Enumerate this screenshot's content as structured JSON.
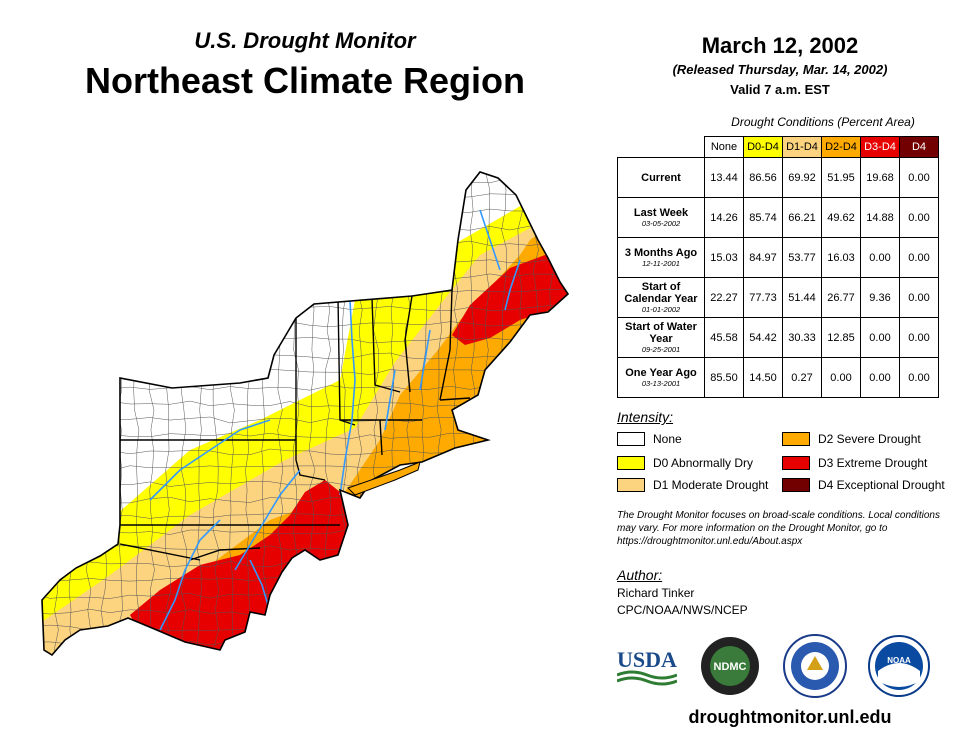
{
  "header": {
    "subtitle": "U.S. Drought Monitor",
    "title": "Northeast Climate Region",
    "date": "March 12, 2002",
    "released": "(Released Thursday, Mar. 14, 2002)",
    "valid": "Valid 7 a.m. EST"
  },
  "table": {
    "caption": "Drought Conditions (Percent Area)",
    "columns": [
      "None",
      "D0-D4",
      "D1-D4",
      "D2-D4",
      "D3-D4",
      "D4"
    ],
    "rows": [
      {
        "label": "Current",
        "date": "",
        "values": [
          "13.44",
          "86.56",
          "69.92",
          "51.95",
          "19.68",
          "0.00"
        ]
      },
      {
        "label": "Last Week",
        "date": "03-05-2002",
        "values": [
          "14.26",
          "85.74",
          "66.21",
          "49.62",
          "14.88",
          "0.00"
        ]
      },
      {
        "label": "3 Months Ago",
        "date": "12-11-2001",
        "values": [
          "15.03",
          "84.97",
          "53.77",
          "16.03",
          "0.00",
          "0.00"
        ]
      },
      {
        "label": "Start of Calendar Year",
        "date": "01-01-2002",
        "values": [
          "22.27",
          "77.73",
          "51.44",
          "26.77",
          "9.36",
          "0.00"
        ]
      },
      {
        "label": "Start of Water Year",
        "date": "09-25-2001",
        "values": [
          "45.58",
          "54.42",
          "30.33",
          "12.85",
          "0.00",
          "0.00"
        ]
      },
      {
        "label": "One Year Ago",
        "date": "03-13-2001",
        "values": [
          "85.50",
          "14.50",
          "0.27",
          "0.00",
          "0.00",
          "0.00"
        ]
      }
    ]
  },
  "legend": {
    "title": "Intensity:",
    "items": [
      {
        "label": "None",
        "color": "#ffffff"
      },
      {
        "label": "D0 Abnormally Dry",
        "color": "#ffff00"
      },
      {
        "label": "D1 Moderate Drought",
        "color": "#fcd37f"
      },
      {
        "label": "D2 Severe Drought",
        "color": "#ffaa00"
      },
      {
        "label": "D3 Extreme Drought",
        "color": "#e60000"
      },
      {
        "label": "D4 Exceptional Drought",
        "color": "#730000"
      }
    ]
  },
  "note": "The Drought Monitor focuses on broad-scale conditions. Local conditions may vary. For more information on the Drought Monitor, go to https://droughtmonitor.unl.edu/About.aspx",
  "author": {
    "title": "Author:",
    "name": "Richard Tinker",
    "org": "CPC/NOAA/NWS/NCEP"
  },
  "logos": {
    "usda": "USDA",
    "ndmc": "NDMC",
    "noaa": "NOAA"
  },
  "website": "droughtmonitor.unl.edu",
  "map_colors": {
    "none": "#ffffff",
    "d0": "#ffff00",
    "d1": "#fcd37f",
    "d2": "#ffaa00",
    "d3": "#e60000",
    "water": "#3399ff",
    "county": "#444444"
  }
}
